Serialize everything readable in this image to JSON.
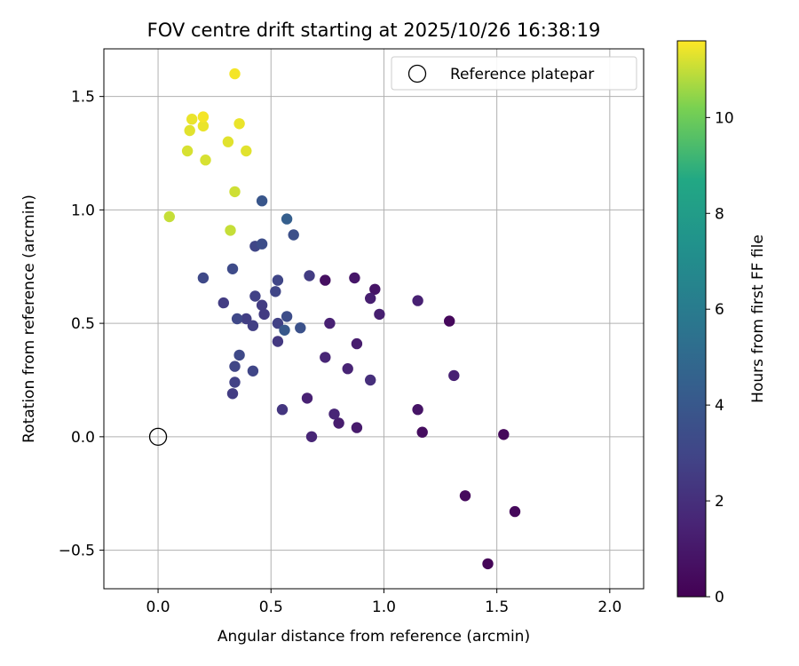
{
  "chart_data": {
    "type": "scatter",
    "title": "FOV centre drift starting at 2025/10/26 16:38:19",
    "xlabel": "Angular distance from reference (arcmin)",
    "ylabel": "Rotation from reference (arcmin)",
    "xlim": [
      -0.24,
      2.15
    ],
    "ylim": [
      -0.67,
      1.71
    ],
    "xticks": [
      0.0,
      0.5,
      1.0,
      1.5,
      2.0
    ],
    "xtick_labels": [
      "0.0",
      "0.5",
      "1.0",
      "1.5",
      "2.0"
    ],
    "yticks": [
      -0.5,
      0.0,
      0.5,
      1.0,
      1.5
    ],
    "ytick_labels": [
      "−0.5",
      "0.0",
      "0.5",
      "1.0",
      "1.5"
    ],
    "grid": true,
    "legend": {
      "placement": "top-right",
      "label": "Reference platepar"
    },
    "reference_point": {
      "x": 0.0,
      "y": 0.0
    },
    "colorbar": {
      "label": "Hours from first FF file",
      "colormap": "viridis",
      "range": [
        0,
        11.6
      ],
      "ticks": [
        0,
        2,
        4,
        6,
        8,
        10
      ],
      "tick_labels": [
        "0",
        "2",
        "4",
        "6",
        "8",
        "10"
      ]
    },
    "points": [
      {
        "x": 1.46,
        "y": -0.56,
        "h": 0.2
      },
      {
        "x": 1.58,
        "y": -0.33,
        "h": 0.3
      },
      {
        "x": 1.36,
        "y": -0.26,
        "h": 0.4
      },
      {
        "x": 1.53,
        "y": 0.01,
        "h": 0.3
      },
      {
        "x": 1.17,
        "y": 0.02,
        "h": 0.5
      },
      {
        "x": 1.15,
        "y": 0.12,
        "h": 0.8
      },
      {
        "x": 1.29,
        "y": 0.51,
        "h": 0.3
      },
      {
        "x": 1.31,
        "y": 0.27,
        "h": 1.4
      },
      {
        "x": 1.15,
        "y": 0.6,
        "h": 1.4
      },
      {
        "x": 0.88,
        "y": 0.04,
        "h": 1.1
      },
      {
        "x": 0.8,
        "y": 0.06,
        "h": 1.2
      },
      {
        "x": 0.78,
        "y": 0.1,
        "h": 1.6
      },
      {
        "x": 0.68,
        "y": 0.0,
        "h": 1.6
      },
      {
        "x": 0.66,
        "y": 0.17,
        "h": 1.4
      },
      {
        "x": 0.55,
        "y": 0.12,
        "h": 2.3
      },
      {
        "x": 0.74,
        "y": 0.69,
        "h": 0.6
      },
      {
        "x": 0.87,
        "y": 0.7,
        "h": 0.9
      },
      {
        "x": 0.96,
        "y": 0.65,
        "h": 0.8
      },
      {
        "x": 0.94,
        "y": 0.61,
        "h": 1.3
      },
      {
        "x": 0.98,
        "y": 0.54,
        "h": 1.3
      },
      {
        "x": 0.76,
        "y": 0.5,
        "h": 1.4
      },
      {
        "x": 0.88,
        "y": 0.41,
        "h": 1.2
      },
      {
        "x": 0.74,
        "y": 0.35,
        "h": 1.6
      },
      {
        "x": 0.84,
        "y": 0.3,
        "h": 1.5
      },
      {
        "x": 0.94,
        "y": 0.25,
        "h": 2.0
      },
      {
        "x": 0.67,
        "y": 0.71,
        "h": 2.6
      },
      {
        "x": 0.53,
        "y": 0.69,
        "h": 3.0
      },
      {
        "x": 0.52,
        "y": 0.64,
        "h": 3.0
      },
      {
        "x": 0.57,
        "y": 0.53,
        "h": 3.4
      },
      {
        "x": 0.53,
        "y": 0.5,
        "h": 2.8
      },
      {
        "x": 0.63,
        "y": 0.48,
        "h": 3.6
      },
      {
        "x": 0.56,
        "y": 0.47,
        "h": 4.0
      },
      {
        "x": 0.53,
        "y": 0.42,
        "h": 2.4
      },
      {
        "x": 0.46,
        "y": 0.58,
        "h": 2.6
      },
      {
        "x": 0.47,
        "y": 0.54,
        "h": 2.5
      },
      {
        "x": 0.43,
        "y": 0.62,
        "h": 2.8
      },
      {
        "x": 0.39,
        "y": 0.52,
        "h": 2.7
      },
      {
        "x": 0.35,
        "y": 0.52,
        "h": 3.1
      },
      {
        "x": 0.42,
        "y": 0.49,
        "h": 2.7
      },
      {
        "x": 0.29,
        "y": 0.59,
        "h": 2.6
      },
      {
        "x": 0.36,
        "y": 0.36,
        "h": 3.2
      },
      {
        "x": 0.34,
        "y": 0.31,
        "h": 3.0
      },
      {
        "x": 0.42,
        "y": 0.29,
        "h": 3.0
      },
      {
        "x": 0.34,
        "y": 0.24,
        "h": 2.8
      },
      {
        "x": 0.33,
        "y": 0.19,
        "h": 2.6
      },
      {
        "x": 0.2,
        "y": 0.7,
        "h": 3.2
      },
      {
        "x": 0.33,
        "y": 0.74,
        "h": 3.3
      },
      {
        "x": 0.43,
        "y": 0.84,
        "h": 3.0
      },
      {
        "x": 0.46,
        "y": 0.85,
        "h": 3.4
      },
      {
        "x": 0.6,
        "y": 0.89,
        "h": 3.5
      },
      {
        "x": 0.57,
        "y": 0.96,
        "h": 4.4
      },
      {
        "x": 0.46,
        "y": 1.04,
        "h": 3.9
      },
      {
        "x": 0.05,
        "y": 0.97,
        "h": 11.0
      },
      {
        "x": 0.32,
        "y": 0.91,
        "h": 11.0
      },
      {
        "x": 0.34,
        "y": 1.08,
        "h": 11.1
      },
      {
        "x": 0.13,
        "y": 1.26,
        "h": 11.2
      },
      {
        "x": 0.21,
        "y": 1.22,
        "h": 11.2
      },
      {
        "x": 0.39,
        "y": 1.26,
        "h": 11.3
      },
      {
        "x": 0.31,
        "y": 1.3,
        "h": 11.3
      },
      {
        "x": 0.14,
        "y": 1.35,
        "h": 11.3
      },
      {
        "x": 0.2,
        "y": 1.37,
        "h": 11.4
      },
      {
        "x": 0.36,
        "y": 1.38,
        "h": 11.4
      },
      {
        "x": 0.15,
        "y": 1.4,
        "h": 11.4
      },
      {
        "x": 0.2,
        "y": 1.41,
        "h": 11.5
      },
      {
        "x": 0.34,
        "y": 1.6,
        "h": 11.5
      }
    ]
  }
}
